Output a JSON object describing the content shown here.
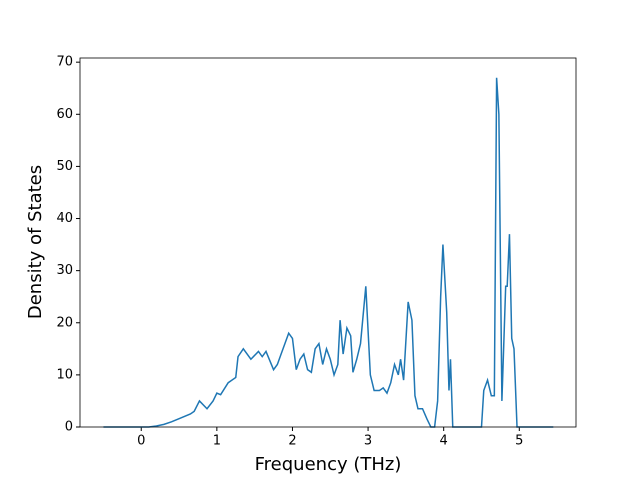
{
  "chart_data": {
    "type": "line",
    "xlabel": "Frequency (THz)",
    "ylabel": "Density of States",
    "xlim": [
      -0.81,
      5.75
    ],
    "ylim": [
      0,
      70.8
    ],
    "xticks": [
      0,
      1,
      2,
      3,
      4,
      5
    ],
    "yticks": [
      0,
      10,
      20,
      30,
      40,
      50,
      60,
      70
    ],
    "series": [
      {
        "color": "#1f77b4",
        "x": [
          -0.5,
          0.1,
          0.2,
          0.3,
          0.4,
          0.5,
          0.65,
          0.7,
          0.77,
          0.87,
          0.95,
          1.0,
          1.05,
          1.15,
          1.25,
          1.28,
          1.35,
          1.45,
          1.55,
          1.6,
          1.65,
          1.75,
          1.8,
          1.85,
          1.9,
          1.95,
          2.0,
          2.05,
          2.1,
          2.15,
          2.2,
          2.25,
          2.3,
          2.35,
          2.4,
          2.45,
          2.5,
          2.55,
          2.6,
          2.63,
          2.67,
          2.72,
          2.77,
          2.8,
          2.85,
          2.9,
          2.97,
          3.03,
          3.08,
          3.15,
          3.2,
          3.25,
          3.3,
          3.35,
          3.4,
          3.43,
          3.47,
          3.53,
          3.58,
          3.62,
          3.66,
          3.72,
          3.78,
          3.83,
          3.88,
          3.92,
          3.96,
          3.99,
          4.04,
          4.07,
          4.09,
          4.12,
          4.5,
          4.53,
          4.58,
          4.63,
          4.67,
          4.7,
          4.73,
          4.77,
          4.82,
          4.84,
          4.87,
          4.9,
          4.93,
          4.97,
          5.45
        ],
        "values": [
          0,
          0,
          0.2,
          0.5,
          1,
          1.6,
          2.5,
          3,
          5,
          3.5,
          5,
          6.5,
          6.2,
          8.5,
          9.5,
          13.5,
          15,
          13,
          14.5,
          13.5,
          14.5,
          11,
          12,
          14,
          16,
          18,
          17,
          11,
          13,
          14,
          11,
          10.5,
          15,
          16,
          12,
          15,
          13,
          10,
          12,
          20.5,
          14,
          19,
          17.5,
          10.5,
          13,
          16,
          27,
          10,
          7,
          7,
          7.5,
          6.5,
          8.5,
          12,
          10,
          13,
          9,
          24,
          20.5,
          6,
          3.5,
          3.5,
          1.5,
          0,
          0,
          5,
          25,
          35,
          22,
          7,
          13,
          0,
          0,
          7,
          9,
          6,
          6,
          67,
          60,
          5,
          27,
          27,
          37,
          17,
          15,
          0,
          0
        ]
      }
    ]
  }
}
